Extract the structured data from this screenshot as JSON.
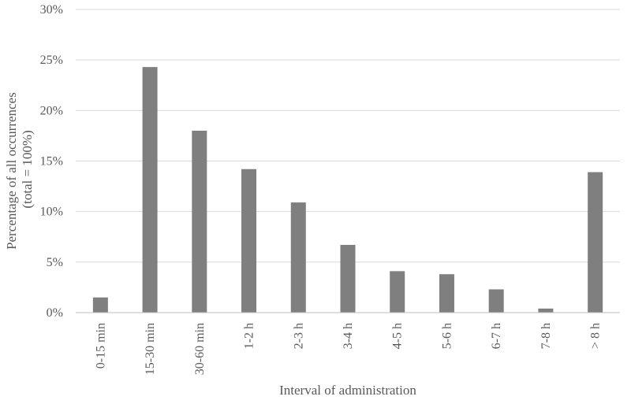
{
  "chart_data": {
    "type": "bar",
    "categories": [
      "0-15 min",
      "15-30 min",
      "30-60 min",
      "1-2 h",
      "2-3 h",
      "3-4 h",
      "4-5 h",
      "5-6 h",
      "6-7 h",
      "7-8 h",
      "> 8 h"
    ],
    "values": [
      1.5,
      24.3,
      18.0,
      14.2,
      10.9,
      6.7,
      4.1,
      3.8,
      2.3,
      0.4,
      13.9
    ],
    "xlabel": "Interval of administration",
    "ylabel_lines": [
      "Percentage of all occurrences",
      "(total = 100%)"
    ],
    "ylim": [
      0,
      30
    ],
    "yticks": [
      "0%",
      "5%",
      "10%",
      "15%",
      "20%",
      "25%",
      "30%"
    ],
    "grid": true,
    "legend": "none",
    "colors": {
      "bar": "#7f7f7f",
      "grid": "#d9d9d9",
      "axis": "#bfbfbf",
      "text": "#595959"
    }
  }
}
